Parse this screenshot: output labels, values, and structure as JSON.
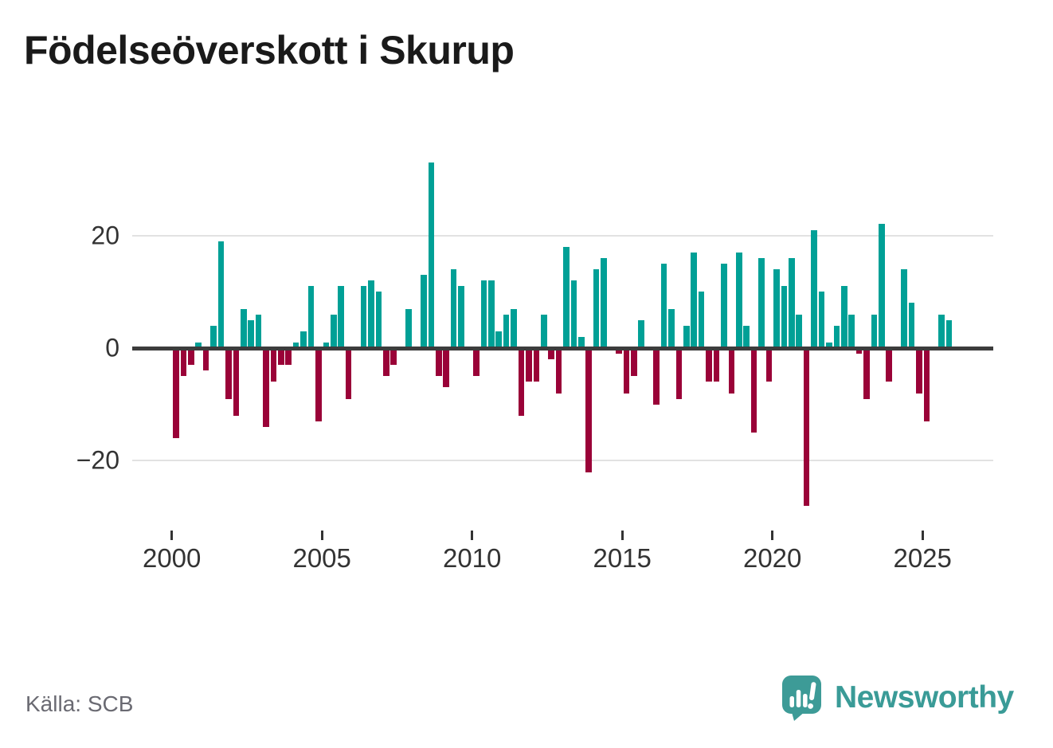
{
  "title": "Födelseöverskott i Skurup",
  "footer": {
    "source": "Källa: SCB",
    "brand_name": "Newsworthy"
  },
  "colors": {
    "positive": "#00a096",
    "negative": "#9a0238",
    "grid": "#e2e2e2",
    "zero_line": "#3c3c3c",
    "axis_text": "#333333",
    "title_text": "#1a1a1a",
    "source_text": "#6a6a72",
    "brand_teal": "#3a9b97"
  },
  "chart_data": {
    "type": "bar",
    "title": "Födelseöverskott i Skurup",
    "x_unit": "quarter",
    "range": "2000Q1–2025Q4, one bar per quarter",
    "series": [
      {
        "year": 2000,
        "values": [
          -16,
          -5,
          -3,
          1
        ]
      },
      {
        "year": 2001,
        "values": [
          -4,
          4,
          19,
          -9
        ]
      },
      {
        "year": 2002,
        "values": [
          -12,
          7,
          5,
          6
        ]
      },
      {
        "year": 2003,
        "values": [
          -14,
          -6,
          -3,
          -3
        ]
      },
      {
        "year": 2004,
        "values": [
          1,
          3,
          11,
          -13
        ]
      },
      {
        "year": 2005,
        "values": [
          1,
          6,
          11,
          -9
        ]
      },
      {
        "year": 2006,
        "values": [
          0,
          11,
          12,
          10
        ]
      },
      {
        "year": 2007,
        "values": [
          -5,
          -3,
          0,
          7
        ]
      },
      {
        "year": 2008,
        "values": [
          0,
          13,
          33,
          -5
        ]
      },
      {
        "year": 2009,
        "values": [
          -7,
          14,
          11,
          0
        ]
      },
      {
        "year": 2010,
        "values": [
          -5,
          12,
          12,
          3
        ]
      },
      {
        "year": 2011,
        "values": [
          6,
          7,
          -12,
          -6
        ]
      },
      {
        "year": 2012,
        "values": [
          -6,
          6,
          -2,
          -8
        ]
      },
      {
        "year": 2013,
        "values": [
          18,
          12,
          2,
          -22
        ]
      },
      {
        "year": 2014,
        "values": [
          14,
          16,
          0,
          -1
        ]
      },
      {
        "year": 2015,
        "values": [
          -8,
          -5,
          5,
          0
        ]
      },
      {
        "year": 2016,
        "values": [
          -10,
          15,
          7,
          -9
        ]
      },
      {
        "year": 2017,
        "values": [
          4,
          17,
          10,
          -6
        ]
      },
      {
        "year": 2018,
        "values": [
          -6,
          15,
          -8,
          17
        ]
      },
      {
        "year": 2019,
        "values": [
          4,
          -15,
          16,
          -6
        ]
      },
      {
        "year": 2020,
        "values": [
          14,
          11,
          16,
          6
        ]
      },
      {
        "year": 2021,
        "values": [
          -28,
          21,
          10,
          1
        ]
      },
      {
        "year": 2022,
        "values": [
          4,
          11,
          6,
          -1
        ]
      },
      {
        "year": 2023,
        "values": [
          -9,
          6,
          22,
          -6
        ]
      },
      {
        "year": 2024,
        "values": [
          0,
          14,
          8,
          -8
        ]
      },
      {
        "year": 2025,
        "values": [
          -13,
          0,
          6,
          5
        ]
      }
    ],
    "xticks": [
      "2000",
      "2005",
      "2010",
      "2015",
      "2020",
      "2025"
    ],
    "yticks": [
      {
        "value": 20,
        "label": "20"
      },
      {
        "value": 0,
        "label": "0"
      },
      {
        "value": -20,
        "label": "−20"
      }
    ],
    "ylim": [
      -30,
      35
    ],
    "grid": "horizontal gridlines at 20 and -20, dark zero line",
    "legend": "none",
    "positive_color": "#00a096",
    "negative_color": "#9a0238"
  }
}
